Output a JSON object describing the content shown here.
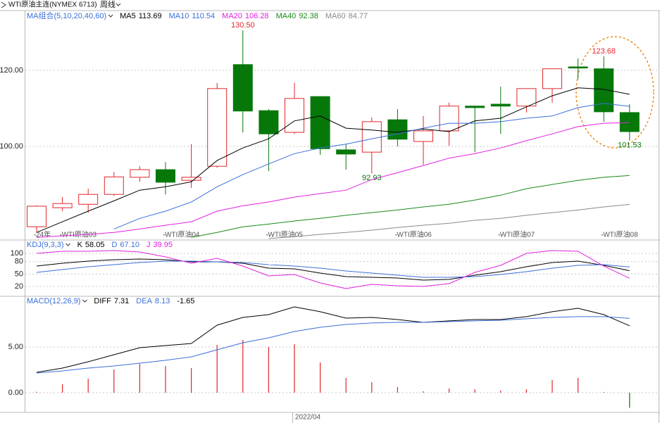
{
  "header": {
    "title": "WTI原油主连(NYMEX 6713)",
    "period": "周线"
  },
  "chart_data": [
    {
      "type": "candlestick",
      "title": "MA组合(5,10,20,40,60)",
      "categories": [
        "24年",
        "WTI原油03",
        null,
        null,
        null,
        "WTI原油04",
        null,
        null,
        null,
        "WTI原油05",
        null,
        null,
        null,
        null,
        "WTI原油06",
        null,
        null,
        null,
        "WTI原油07",
        null,
        null,
        null,
        "WTI原油08",
        null
      ],
      "open": [
        78.9,
        83.9,
        84.8,
        87.4,
        91.9,
        93.9,
        91.1,
        94.8,
        121.5,
        109.4,
        103.7,
        113.1,
        99.1,
        98.5,
        107.0,
        101.3,
        104.1,
        110.6,
        111.1,
        110.6,
        115.2,
        120.9,
        120.4,
        108.9
      ],
      "high": [
        84.5,
        86.7,
        88.9,
        93.3,
        94.8,
        95.9,
        100.6,
        116.7,
        130.5,
        109.8,
        116.7,
        113.1,
        100.6,
        107.6,
        109.8,
        108.0,
        111.5,
        110.7,
        115.7,
        115.2,
        120.4,
        123.1,
        123.68,
        111.1
      ],
      "low": [
        77.4,
        83.0,
        82.6,
        87.0,
        90.7,
        87.4,
        89.1,
        94.4,
        103.7,
        93.5,
        103.3,
        97.8,
        93.9,
        92.93,
        100.0,
        95.2,
        100.2,
        98.5,
        103.3,
        108.9,
        111.5,
        117.6,
        106.5,
        101.53
      ],
      "close": [
        84.3,
        85.0,
        87.4,
        92.0,
        93.9,
        90.6,
        91.9,
        115.2,
        109.3,
        103.3,
        112.6,
        99.4,
        98.0,
        106.5,
        101.9,
        104.1,
        110.6,
        110.2,
        110.6,
        115.2,
        120.4,
        120.6,
        109.1,
        103.9
      ],
      "high_labels": [
        null,
        null,
        null,
        null,
        null,
        null,
        null,
        null,
        "130.50",
        null,
        null,
        null,
        null,
        null,
        null,
        null,
        null,
        null,
        null,
        null,
        null,
        null,
        "123.68",
        null
      ],
      "low_labels": [
        null,
        null,
        null,
        null,
        null,
        null,
        null,
        null,
        null,
        null,
        null,
        null,
        null,
        "92.93",
        null,
        null,
        null,
        null,
        null,
        null,
        null,
        null,
        null,
        "101.53"
      ],
      "up_color": "#e0262c",
      "down_color": "#06780a",
      "series": [
        {
          "name": "MA5",
          "color": "#000000",
          "values": [
            77.4,
            80.2,
            83.0,
            85.7,
            88.5,
            89.4,
            90.7,
            96.3,
            99.6,
            102.0,
            106.7,
            108.0,
            104.8,
            104.3,
            103.7,
            104.6,
            103.9,
            106.7,
            107.4,
            110.4,
            113.3,
            115.4,
            115.0,
            113.69
          ]
        },
        {
          "name": "MA10",
          "color": "#3a6fd8",
          "values": [
            null,
            null,
            null,
            78.3,
            81.1,
            83.0,
            85.4,
            89.4,
            92.6,
            95.4,
            98.1,
            99.6,
            100.6,
            102.0,
            103.3,
            104.8,
            106.1,
            106.1,
            106.5,
            107.4,
            108.0,
            110.2,
            111.3,
            110.54
          ]
        },
        {
          "name": "MA20",
          "color": "#e020e0",
          "values": [
            76.1,
            76.5,
            76.9,
            77.4,
            78.3,
            79.3,
            80.2,
            83.0,
            84.4,
            85.4,
            86.7,
            87.6,
            88.5,
            91.3,
            93.1,
            95.0,
            96.9,
            98.1,
            99.6,
            101.5,
            103.3,
            105.2,
            106.1,
            106.28
          ]
        },
        {
          "name": "MA40",
          "color": "#1a8a1a",
          "values": [
            null,
            null,
            null,
            null,
            null,
            null,
            76.1,
            77.4,
            78.9,
            79.6,
            80.4,
            81.1,
            81.9,
            82.6,
            83.3,
            84.1,
            84.8,
            85.9,
            87.2,
            88.9,
            90.0,
            91.1,
            91.9,
            92.38
          ]
        },
        {
          "name": "MA60",
          "color": "#8a8a8a",
          "values": [
            null,
            null,
            null,
            null,
            null,
            null,
            null,
            null,
            null,
            75.8,
            76.3,
            76.9,
            77.4,
            78.0,
            78.7,
            79.3,
            79.8,
            80.6,
            81.1,
            81.9,
            82.6,
            83.3,
            84.1,
            84.77
          ]
        }
      ],
      "ylim": [
        75.6,
        135.7
      ],
      "yticks": [
        {
          "value": 100,
          "label": "100.00"
        },
        {
          "value": 120,
          "label": "120.00"
        }
      ],
      "grid": true
    },
    {
      "type": "line",
      "title": "KDJ(9,3,3)",
      "series": [
        {
          "name": "K",
          "color": "#000000",
          "values": [
            69.4,
            76.2,
            81.3,
            84.7,
            86.4,
            84.7,
            79.6,
            79.6,
            76.2,
            64.3,
            62.6,
            52.3,
            43.8,
            42.1,
            40.4,
            35.3,
            37.0,
            47.2,
            55.7,
            67.7,
            77.9,
            81.3,
            71.1,
            58.05
          ]
        },
        {
          "name": "D",
          "color": "#3a6fd8",
          "values": [
            54.0,
            60.9,
            67.7,
            72.8,
            77.9,
            81.3,
            81.3,
            79.6,
            77.9,
            72.8,
            69.4,
            64.3,
            57.4,
            52.3,
            47.2,
            42.1,
            42.1,
            43.8,
            48.9,
            55.7,
            64.3,
            71.1,
            72.8,
            67.1
          ],
          "value_labels": [
            null,
            null,
            null,
            null,
            null,
            null,
            null,
            null,
            null,
            null,
            null,
            null,
            null,
            null,
            null,
            null,
            null,
            null,
            null,
            null,
            null,
            null,
            null,
            "67.10"
          ]
        },
        {
          "name": "J",
          "color": "#e020e0",
          "values": [
            100,
            105.1,
            105.1,
            106.8,
            103.4,
            91.5,
            76.2,
            88.1,
            69.4,
            45.5,
            48.9,
            28.5,
            14.9,
            25.1,
            21.7,
            20.0,
            26.8,
            54.0,
            71.1,
            100,
            106.8,
            105.1,
            69.4,
            39.95
          ]
        }
      ],
      "ylim": [
        -2.1,
        130.6
      ],
      "yticks": [
        20,
        50,
        80,
        100
      ],
      "grid": true
    },
    {
      "type": "macd",
      "title": "MACD(12,26,9)",
      "x_label": "2022/04",
      "series": [
        {
          "name": "DIFF",
          "color": "#000000",
          "values": [
            2.23,
            2.69,
            3.38,
            4.15,
            4.92,
            5.15,
            5.38,
            7.38,
            8.23,
            8.54,
            9.38,
            8.85,
            8.15,
            8.23,
            8.0,
            7.69,
            7.85,
            8.0,
            8.0,
            8.31,
            8.85,
            9.23,
            8.54,
            7.31
          ]
        },
        {
          "name": "DEA",
          "color": "#3a6fd8",
          "values": [
            2.15,
            2.38,
            2.69,
            2.92,
            3.23,
            3.54,
            3.92,
            4.69,
            5.46,
            6.0,
            6.69,
            7.15,
            7.46,
            7.62,
            7.69,
            7.69,
            7.77,
            7.85,
            7.92,
            8.08,
            8.23,
            8.31,
            8.31,
            8.13
          ]
        }
      ],
      "bars": {
        "up_color": "#e0262c",
        "down_color": "#06780a",
        "values": [
          0.1,
          0.92,
          1.54,
          2.54,
          3.15,
          2.92,
          2.69,
          5.23,
          5.77,
          5.0,
          5.31,
          3.31,
          1.62,
          1.15,
          0.62,
          0.15,
          0.46,
          0.38,
          0.23,
          0.38,
          1.38,
          1.62,
          0.08,
          -1.65
        ]
      },
      "ylim": [
        -2.08,
        10.46
      ],
      "yticks": [
        {
          "value": 0,
          "label": "0.00"
        },
        {
          "value": 5,
          "label": "5.00"
        }
      ],
      "grid": true
    }
  ]
}
